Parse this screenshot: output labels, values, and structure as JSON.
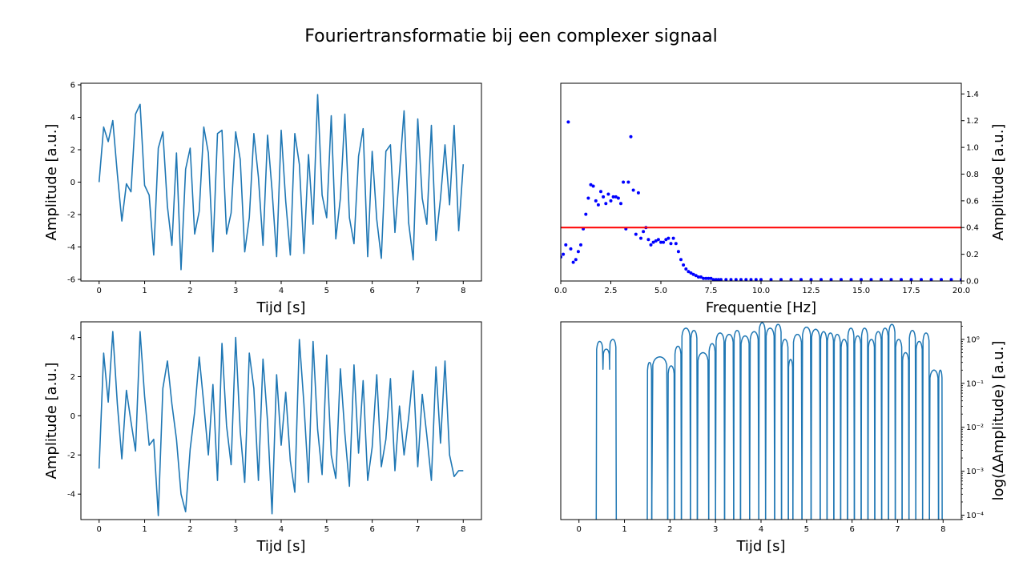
{
  "figure": {
    "title": "Fouriertransformatie bij een complexer signaal"
  },
  "colors": {
    "line": "#1f77b4",
    "points": "#0000ff",
    "threshold": "#ff0000",
    "frame": "#000000"
  },
  "chart_data": [
    {
      "id": "top-left",
      "type": "line",
      "xlabel": "Tijd [s]",
      "ylabel": "Amplitude [a.u.]",
      "xlim": [
        -0.4,
        8.4
      ],
      "ylim": [
        -6.1,
        6.1
      ],
      "xticks": [
        0,
        1,
        2,
        3,
        4,
        5,
        6,
        7,
        8
      ],
      "yticks": [
        -6,
        -4,
        -2,
        0,
        2,
        4,
        6
      ],
      "yaxis_side": "left",
      "series": [
        {
          "x": [
            0,
            0.1,
            0.2,
            0.3,
            0.4,
            0.5,
            0.6,
            0.7,
            0.8,
            0.9,
            1.0,
            1.1,
            1.2,
            1.3,
            1.4,
            1.5,
            1.6,
            1.7,
            1.8,
            1.9,
            2.0,
            2.1,
            2.2,
            2.3,
            2.4,
            2.5,
            2.6,
            2.7,
            2.8,
            2.9,
            3.0,
            3.1,
            3.2,
            3.3,
            3.4,
            3.5,
            3.6,
            3.7,
            3.8,
            3.9,
            4.0,
            4.1,
            4.2,
            4.3,
            4.4,
            4.5,
            4.6,
            4.7,
            4.8,
            4.9,
            5.0,
            5.1,
            5.2,
            5.3,
            5.4,
            5.5,
            5.6,
            5.7,
            5.8,
            5.9,
            6.0,
            6.1,
            6.2,
            6.3,
            6.4,
            6.5,
            6.6,
            6.7,
            6.8,
            6.9,
            7.0,
            7.1,
            7.2,
            7.3,
            7.4,
            7.5,
            7.6,
            7.7,
            7.8,
            7.9,
            8.0
          ],
          "y": [
            0,
            3.4,
            2.5,
            3.8,
            0.5,
            -2.4,
            -0.1,
            -0.6,
            4.2,
            4.8,
            -0.2,
            -0.8,
            -4.5,
            2.1,
            3.1,
            -1.5,
            -3.9,
            1.8,
            -5.4,
            0.8,
            2.1,
            -3.2,
            -1.8,
            3.4,
            1.8,
            -4.3,
            3.0,
            3.2,
            -3.2,
            -1.9,
            3.1,
            1.4,
            -4.3,
            -2.2,
            3.0,
            0.3,
            -3.9,
            2.9,
            -0.5,
            -4.6,
            3.2,
            -1.2,
            -4.5,
            3.0,
            1.1,
            -4.4,
            1.7,
            -2.6,
            5.4,
            -0.8,
            -2.2,
            4.1,
            -3.5,
            -1.0,
            4.2,
            -2.2,
            -3.8,
            1.6,
            3.3,
            -4.6,
            1.9,
            -2.3,
            -4.7,
            1.9,
            2.3,
            -3.1,
            0.6,
            4.4,
            -2.5,
            -4.8,
            3.9,
            -1.0,
            -2.6,
            3.5,
            -3.6,
            -1.0,
            2.3,
            -1.4,
            3.5,
            -3.0,
            1.1
          ]
        }
      ]
    },
    {
      "id": "top-right",
      "type": "scatter",
      "xlabel": "Frequentie [Hz]",
      "ylabel": "Amplitude [a.u.]",
      "xlim": [
        0,
        20
      ],
      "ylim": [
        0,
        1.48
      ],
      "xticks": [
        0,
        2.5,
        5.0,
        7.5,
        10.0,
        12.5,
        15.0,
        17.5,
        20.0
      ],
      "xtick_labels": [
        "0.0",
        "2.5",
        "5.0",
        "7.5",
        "10.0",
        "12.5",
        "15.0",
        "17.5",
        "20.0"
      ],
      "yticks": [
        0,
        0.2,
        0.4,
        0.6,
        0.8,
        1.0,
        1.2,
        1.4
      ],
      "ytick_labels": [
        "0.0",
        "0.2",
        "0.4",
        "0.6",
        "0.8",
        "1.0",
        "1.2",
        "1.4"
      ],
      "yaxis_side": "right",
      "threshold": 0.4,
      "points": {
        "x": [
          0.0,
          0.125,
          0.25,
          0.375,
          0.5,
          0.625,
          0.75,
          0.875,
          1.0,
          1.125,
          1.25,
          1.375,
          1.5,
          1.625,
          1.75,
          1.875,
          2.0,
          2.125,
          2.25,
          2.375,
          2.5,
          2.625,
          2.75,
          2.875,
          3.0,
          3.125,
          3.25,
          3.375,
          3.5,
          3.625,
          3.75,
          3.875,
          4.0,
          4.125,
          4.25,
          4.375,
          4.5,
          4.625,
          4.75,
          4.875,
          5.0,
          5.125,
          5.25,
          5.375,
          5.5,
          5.625,
          5.75,
          5.875,
          6.0,
          6.125,
          6.25,
          6.375,
          6.5,
          6.625,
          6.75,
          6.875,
          7.0,
          7.125,
          7.25,
          7.375,
          7.5,
          7.625,
          7.75,
          7.875,
          8.0,
          8.25,
          8.5,
          8.75,
          9.0,
          9.25,
          9.5,
          9.75,
          10.0,
          10.5,
          11.0,
          11.5,
          12.0,
          12.5,
          13.0,
          13.5,
          14.0,
          14.5,
          15.0,
          15.5,
          16.0,
          16.5,
          17.0,
          17.5,
          18.0,
          18.5,
          19.0,
          19.5,
          20.0
        ],
        "y": [
          0.18,
          0.2,
          0.27,
          1.19,
          0.24,
          0.14,
          0.16,
          0.22,
          0.27,
          0.39,
          0.5,
          0.62,
          0.72,
          0.71,
          0.6,
          0.57,
          0.67,
          0.63,
          0.58,
          0.65,
          0.6,
          0.63,
          0.63,
          0.62,
          0.58,
          0.74,
          0.39,
          0.74,
          1.08,
          0.68,
          0.35,
          0.66,
          0.32,
          0.37,
          0.4,
          0.31,
          0.27,
          0.29,
          0.3,
          0.31,
          0.29,
          0.29,
          0.31,
          0.32,
          0.28,
          0.32,
          0.28,
          0.22,
          0.16,
          0.12,
          0.09,
          0.07,
          0.06,
          0.05,
          0.04,
          0.03,
          0.03,
          0.02,
          0.02,
          0.02,
          0.02,
          0.01,
          0.01,
          0.01,
          0.01,
          0.01,
          0.01,
          0.01,
          0.01,
          0.01,
          0.01,
          0.01,
          0.01,
          0.01,
          0.01,
          0.01,
          0.01,
          0.01,
          0.01,
          0.01,
          0.01,
          0.01,
          0.01,
          0.01,
          0.01,
          0.01,
          0.01,
          0.01,
          0.01,
          0.01,
          0.01,
          0.01,
          0.01
        ]
      }
    },
    {
      "id": "bottom-left",
      "type": "line",
      "xlabel": "Tijd [s]",
      "ylabel": "Amplitude [a.u.]",
      "xlim": [
        -0.4,
        8.4
      ],
      "ylim": [
        -5.3,
        4.8
      ],
      "xticks": [
        0,
        1,
        2,
        3,
        4,
        5,
        6,
        7,
        8
      ],
      "yticks": [
        -4,
        -2,
        0,
        2,
        4
      ],
      "yaxis_side": "left",
      "series": [
        {
          "x": [
            0,
            0.1,
            0.2,
            0.3,
            0.4,
            0.5,
            0.6,
            0.7,
            0.8,
            0.9,
            1.0,
            1.1,
            1.2,
            1.3,
            1.4,
            1.5,
            1.6,
            1.7,
            1.8,
            1.9,
            2.0,
            2.1,
            2.2,
            2.3,
            2.4,
            2.5,
            2.6,
            2.7,
            2.8,
            2.9,
            3.0,
            3.1,
            3.2,
            3.3,
            3.4,
            3.5,
            3.6,
            3.7,
            3.8,
            3.9,
            4.0,
            4.1,
            4.2,
            4.3,
            4.4,
            4.5,
            4.6,
            4.7,
            4.8,
            4.9,
            5.0,
            5.1,
            5.2,
            5.3,
            5.4,
            5.5,
            5.6,
            5.7,
            5.8,
            5.9,
            6.0,
            6.1,
            6.2,
            6.3,
            6.4,
            6.5,
            6.6,
            6.7,
            6.8,
            6.9,
            7.0,
            7.1,
            7.2,
            7.3,
            7.4,
            7.5,
            7.6,
            7.7,
            7.8,
            7.9,
            8.0
          ],
          "y": [
            -2.7,
            3.2,
            0.7,
            4.3,
            0.6,
            -2.2,
            1.3,
            -0.3,
            -1.8,
            4.3,
            1.0,
            -1.5,
            -1.2,
            -5.1,
            1.4,
            2.8,
            0.6,
            -1.2,
            -4.0,
            -4.9,
            -1.7,
            0.2,
            3.0,
            0.6,
            -2.0,
            1.6,
            -3.3,
            3.7,
            -0.5,
            -2.5,
            4.0,
            -0.8,
            -3.4,
            3.2,
            1.4,
            -3.3,
            2.9,
            -0.3,
            -5.0,
            2.1,
            -1.5,
            1.2,
            -2.3,
            -3.9,
            3.9,
            0.6,
            -3.4,
            3.8,
            -0.7,
            -3.0,
            3.1,
            -2.0,
            -3.2,
            2.4,
            -0.9,
            -3.6,
            2.6,
            -1.9,
            1.8,
            -3.3,
            -1.6,
            2.1,
            -2.6,
            -1.2,
            1.9,
            -2.8,
            0.5,
            -2.0,
            -0.1,
            2.3,
            -2.6,
            1.1,
            -1.0,
            -3.3,
            2.5,
            -1.4,
            2.8,
            -2.0,
            -3.1,
            -2.8,
            -2.8
          ]
        }
      ]
    },
    {
      "id": "bottom-right",
      "type": "line",
      "xlabel": "Tijd [s]",
      "ylabel": "log(ΔAmplitude) [a.u.]",
      "xlim": [
        -0.4,
        8.4
      ],
      "ylim_log10": [
        -4.1,
        0.4
      ],
      "xticks": [
        0,
        1,
        2,
        3,
        4,
        5,
        6,
        7,
        8
      ],
      "yticks_log10": [
        -4,
        -3,
        -2,
        -1,
        0
      ],
      "ytick_labels": [
        "10⁻⁴",
        "10⁻³",
        "10⁻²",
        "10⁻¹",
        "10⁰"
      ],
      "yaxis_side": "right",
      "log_scale_y": true,
      "floor": 0.0001,
      "humps": [
        {
          "start": 0.38,
          "end": 0.82,
          "peaks": [
            0.9,
            0.6,
            1.0
          ]
        },
        {
          "start": 1.5,
          "end": 1.6,
          "peaks": [
            0.3
          ]
        },
        {
          "start": 1.6,
          "end": 1.95,
          "peaks": [
            0.4
          ]
        },
        {
          "start": 1.95,
          "end": 2.1,
          "peaks": [
            0.25
          ]
        },
        {
          "start": 2.1,
          "end": 2.25,
          "peaks": [
            0.7
          ]
        },
        {
          "start": 2.25,
          "end": 2.45,
          "peaks": [
            1.8
          ]
        },
        {
          "start": 2.45,
          "end": 2.6,
          "peaks": [
            1.6
          ]
        },
        {
          "start": 2.6,
          "end": 2.85,
          "peaks": [
            0.5
          ]
        },
        {
          "start": 2.85,
          "end": 3.0,
          "peaks": [
            0.8
          ]
        },
        {
          "start": 3.0,
          "end": 3.2,
          "peaks": [
            1.4
          ]
        },
        {
          "start": 3.2,
          "end": 3.4,
          "peaks": [
            1.3
          ]
        },
        {
          "start": 3.4,
          "end": 3.55,
          "peaks": [
            1.6
          ]
        },
        {
          "start": 3.55,
          "end": 3.75,
          "peaks": [
            1.2
          ]
        },
        {
          "start": 3.75,
          "end": 3.95,
          "peaks": [
            1.5
          ]
        },
        {
          "start": 3.95,
          "end": 4.1,
          "peaks": [
            2.4
          ]
        },
        {
          "start": 4.1,
          "end": 4.3,
          "peaks": [
            1.8
          ]
        },
        {
          "start": 4.3,
          "end": 4.45,
          "peaks": [
            2.2
          ]
        },
        {
          "start": 4.45,
          "end": 4.6,
          "peaks": [
            1.0
          ]
        },
        {
          "start": 4.6,
          "end": 4.7,
          "peaks": [
            0.35
          ]
        },
        {
          "start": 4.7,
          "end": 4.9,
          "peaks": [
            1.3
          ]
        },
        {
          "start": 4.9,
          "end": 5.1,
          "peaks": [
            1.9
          ]
        },
        {
          "start": 5.1,
          "end": 5.3,
          "peaks": [
            1.7
          ]
        },
        {
          "start": 5.3,
          "end": 5.45,
          "peaks": [
            1.5
          ]
        },
        {
          "start": 5.45,
          "end": 5.6,
          "peaks": [
            1.4
          ]
        },
        {
          "start": 5.6,
          "end": 5.75,
          "peaks": [
            1.3
          ]
        },
        {
          "start": 5.75,
          "end": 5.9,
          "peaks": [
            1.0
          ]
        },
        {
          "start": 5.9,
          "end": 6.05,
          "peaks": [
            1.8
          ]
        },
        {
          "start": 6.05,
          "end": 6.2,
          "peaks": [
            1.2
          ]
        },
        {
          "start": 6.2,
          "end": 6.35,
          "peaks": [
            1.8
          ]
        },
        {
          "start": 6.35,
          "end": 6.5,
          "peaks": [
            1.0
          ]
        },
        {
          "start": 6.5,
          "end": 6.65,
          "peaks": [
            1.5
          ]
        },
        {
          "start": 6.65,
          "end": 6.8,
          "peaks": [
            1.8
          ]
        },
        {
          "start": 6.8,
          "end": 6.95,
          "peaks": [
            2.2
          ]
        },
        {
          "start": 6.95,
          "end": 7.1,
          "peaks": [
            1.0
          ]
        },
        {
          "start": 7.1,
          "end": 7.25,
          "peaks": [
            0.5
          ]
        },
        {
          "start": 7.25,
          "end": 7.4,
          "peaks": [
            1.6
          ]
        },
        {
          "start": 7.4,
          "end": 7.55,
          "peaks": [
            0.9
          ]
        },
        {
          "start": 7.55,
          "end": 7.7,
          "peaks": [
            1.4
          ]
        },
        {
          "start": 7.7,
          "end": 7.9,
          "peaks": [
            0.2
          ]
        },
        {
          "start": 7.9,
          "end": 7.98,
          "peaks": [
            0.2
          ]
        }
      ]
    }
  ]
}
